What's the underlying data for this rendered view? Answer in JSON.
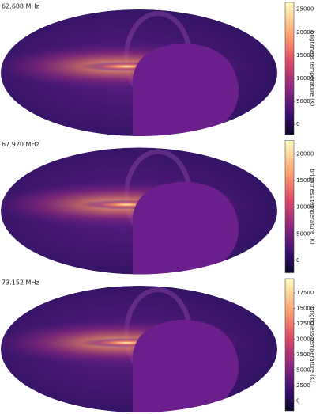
{
  "chart_data": [
    {
      "type": "skymap",
      "title": "62.688 MHz",
      "colorbar_label": "brightness temperature (K)",
      "ylim": [
        -2200,
        26500
      ],
      "yticks": [
        0,
        5000,
        10000,
        15000,
        20000,
        25000
      ]
    },
    {
      "type": "skymap",
      "title": "67.920 MHz",
      "colorbar_label": "brightness temperature (K)",
      "ylim": [
        -2300,
        22500
      ],
      "yticks": [
        0,
        5000,
        10000,
        15000,
        20000
      ]
    },
    {
      "type": "skymap",
      "title": "73.152 MHz",
      "colorbar_label": "brightness temperature (K)",
      "ylim": [
        -1600,
        19800
      ],
      "yticks": [
        0,
        2500,
        5000,
        7500,
        10000,
        12500,
        15000,
        17500
      ]
    }
  ]
}
